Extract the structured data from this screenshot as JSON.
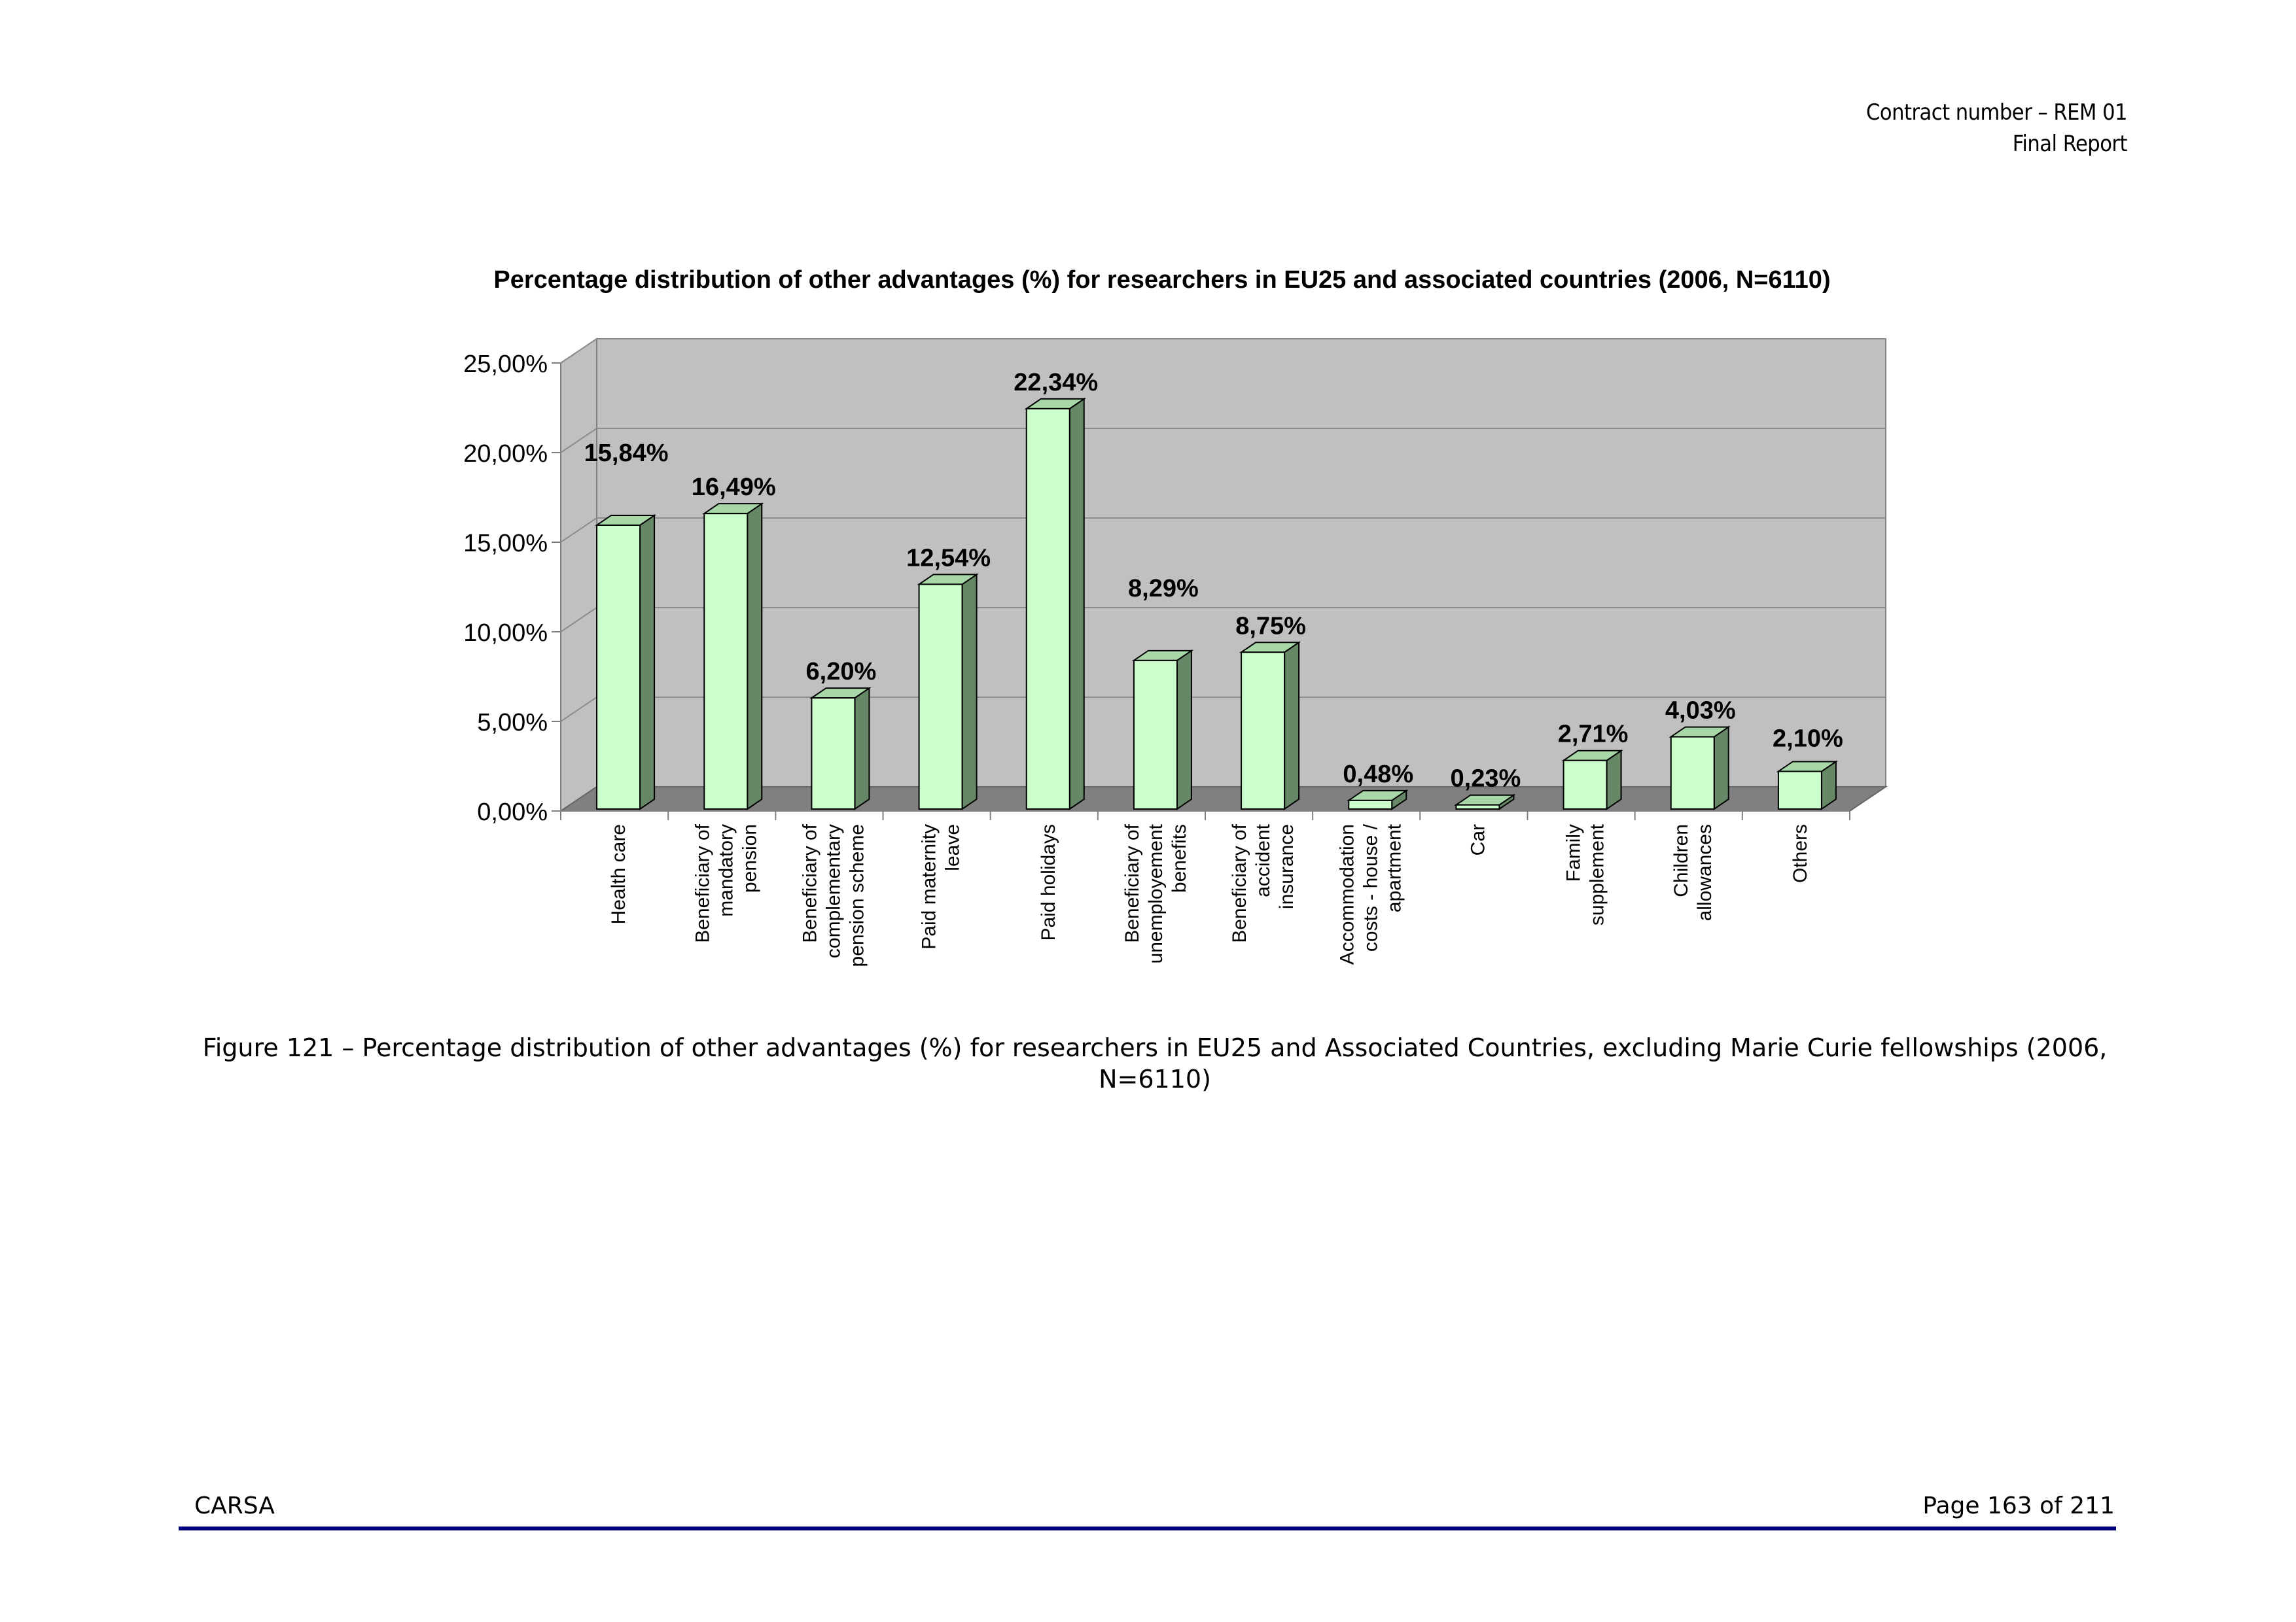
{
  "header": {
    "contract": "Contract number – REM 01",
    "report": "Final Report"
  },
  "chart_data": {
    "type": "bar",
    "title": "Percentage distribution of other advantages (%) for researchers in EU25 and associated countries (2006, N=6110)",
    "categories": [
      [
        "Health care"
      ],
      [
        "Beneficiary of",
        "mandatory",
        "pension"
      ],
      [
        "Beneficiary of",
        "complementary",
        "pension scheme"
      ],
      [
        "Paid maternity",
        "leave"
      ],
      [
        "Paid holidays"
      ],
      [
        "Beneficiary of",
        "unemployement",
        "benefits"
      ],
      [
        "Beneficiary of",
        "accident",
        "insurance"
      ],
      [
        "Accommodation",
        "costs - house /",
        "apartment"
      ],
      [
        "Car"
      ],
      [
        "Family",
        "supplement"
      ],
      [
        "Children",
        "allowances"
      ],
      [
        "Others"
      ]
    ],
    "values": [
      15.84,
      16.49,
      6.2,
      12.54,
      22.34,
      8.29,
      8.75,
      0.48,
      0.23,
      2.71,
      4.03,
      2.1
    ],
    "data_labels": [
      "15,84%",
      "16,49%",
      "6,20%",
      "12,54%",
      "22,34%",
      "8,29%",
      "8,75%",
      "0,48%",
      "0,23%",
      "2,71%",
      "4,03%",
      "2,10%"
    ],
    "ylim": [
      0,
      25
    ],
    "yticks": [
      "0,00%",
      "5,00%",
      "10,00%",
      "15,00%",
      "20,00%",
      "25,00%"
    ],
    "grid": true,
    "legend": "none",
    "colors": {
      "bar_front": "#ccffcc",
      "bar_top": "#a8d8a8",
      "bar_side": "#668866",
      "wall": "#c0c0c0",
      "floor": "#808080"
    }
  },
  "caption": "Figure 121 – Percentage distribution of other advantages (%) for researchers in EU25 and Associated Countries, excluding Marie Curie fellowships (2006, N=6110)",
  "footer": {
    "left": "CARSA",
    "right": "Page 163 of 211"
  }
}
